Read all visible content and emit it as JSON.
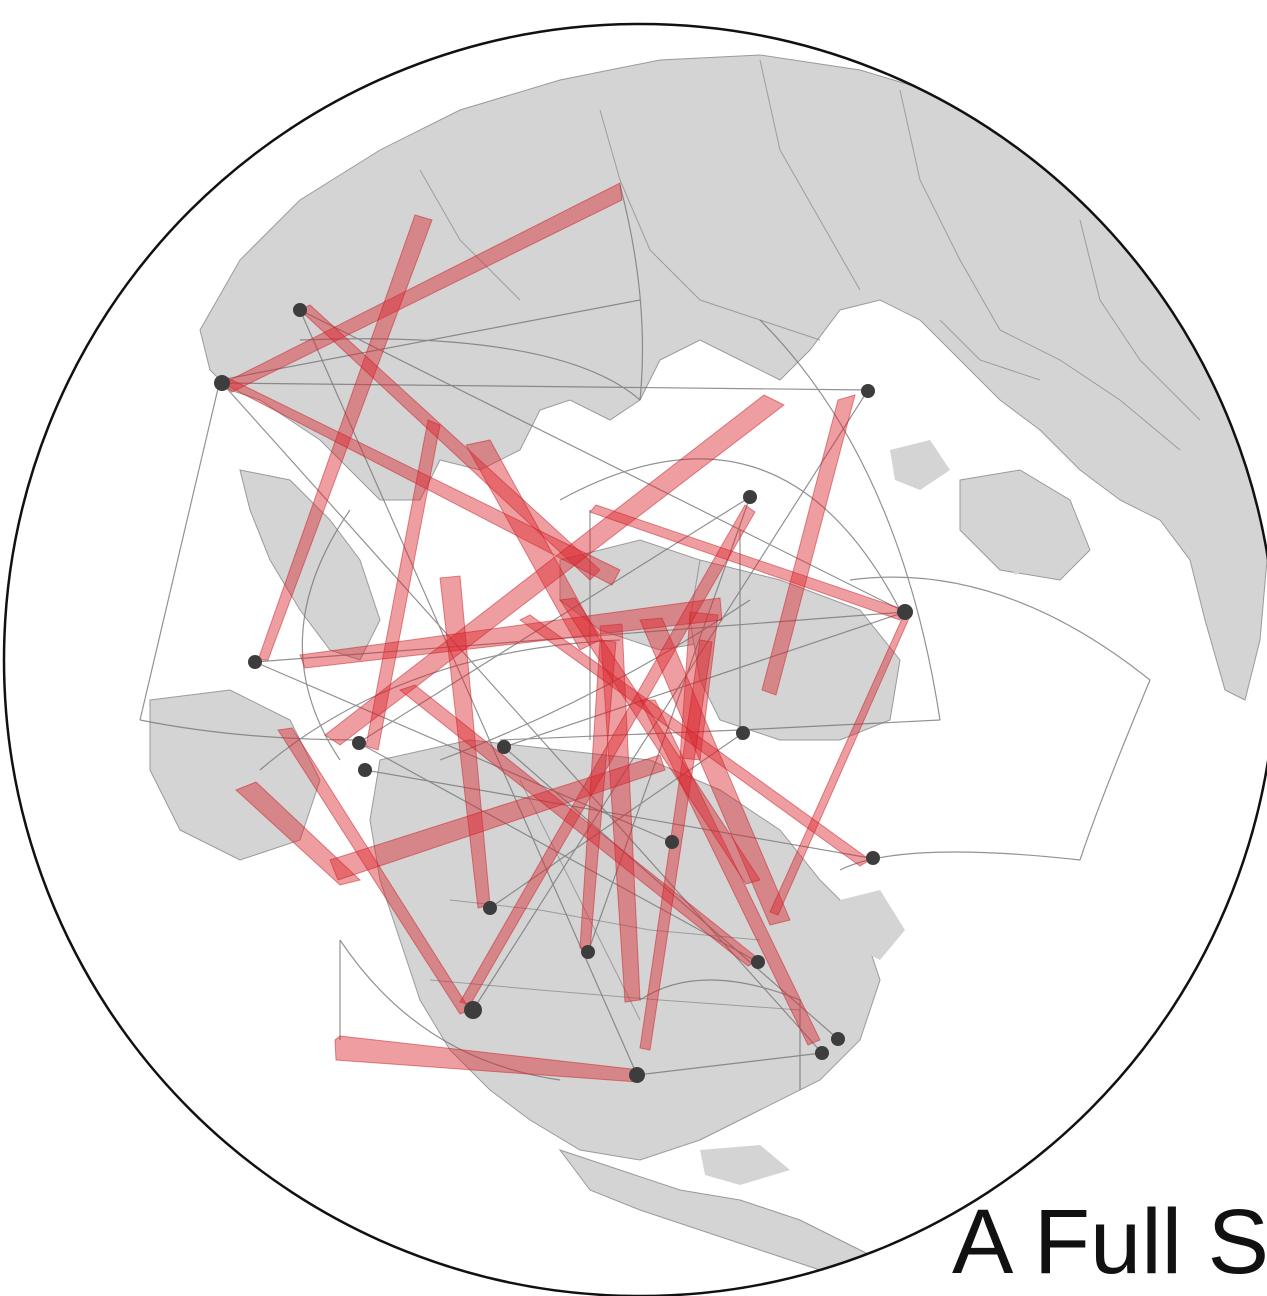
{
  "caption": "A Full S",
  "colors": {
    "land": "#d4d4d4",
    "border": "#8f8f8f",
    "ocean": "#ffffff",
    "globe_outline": "#111111",
    "flow": "#d9272e",
    "node": "#3d3d3d",
    "thin_line": "#777777"
  }
}
